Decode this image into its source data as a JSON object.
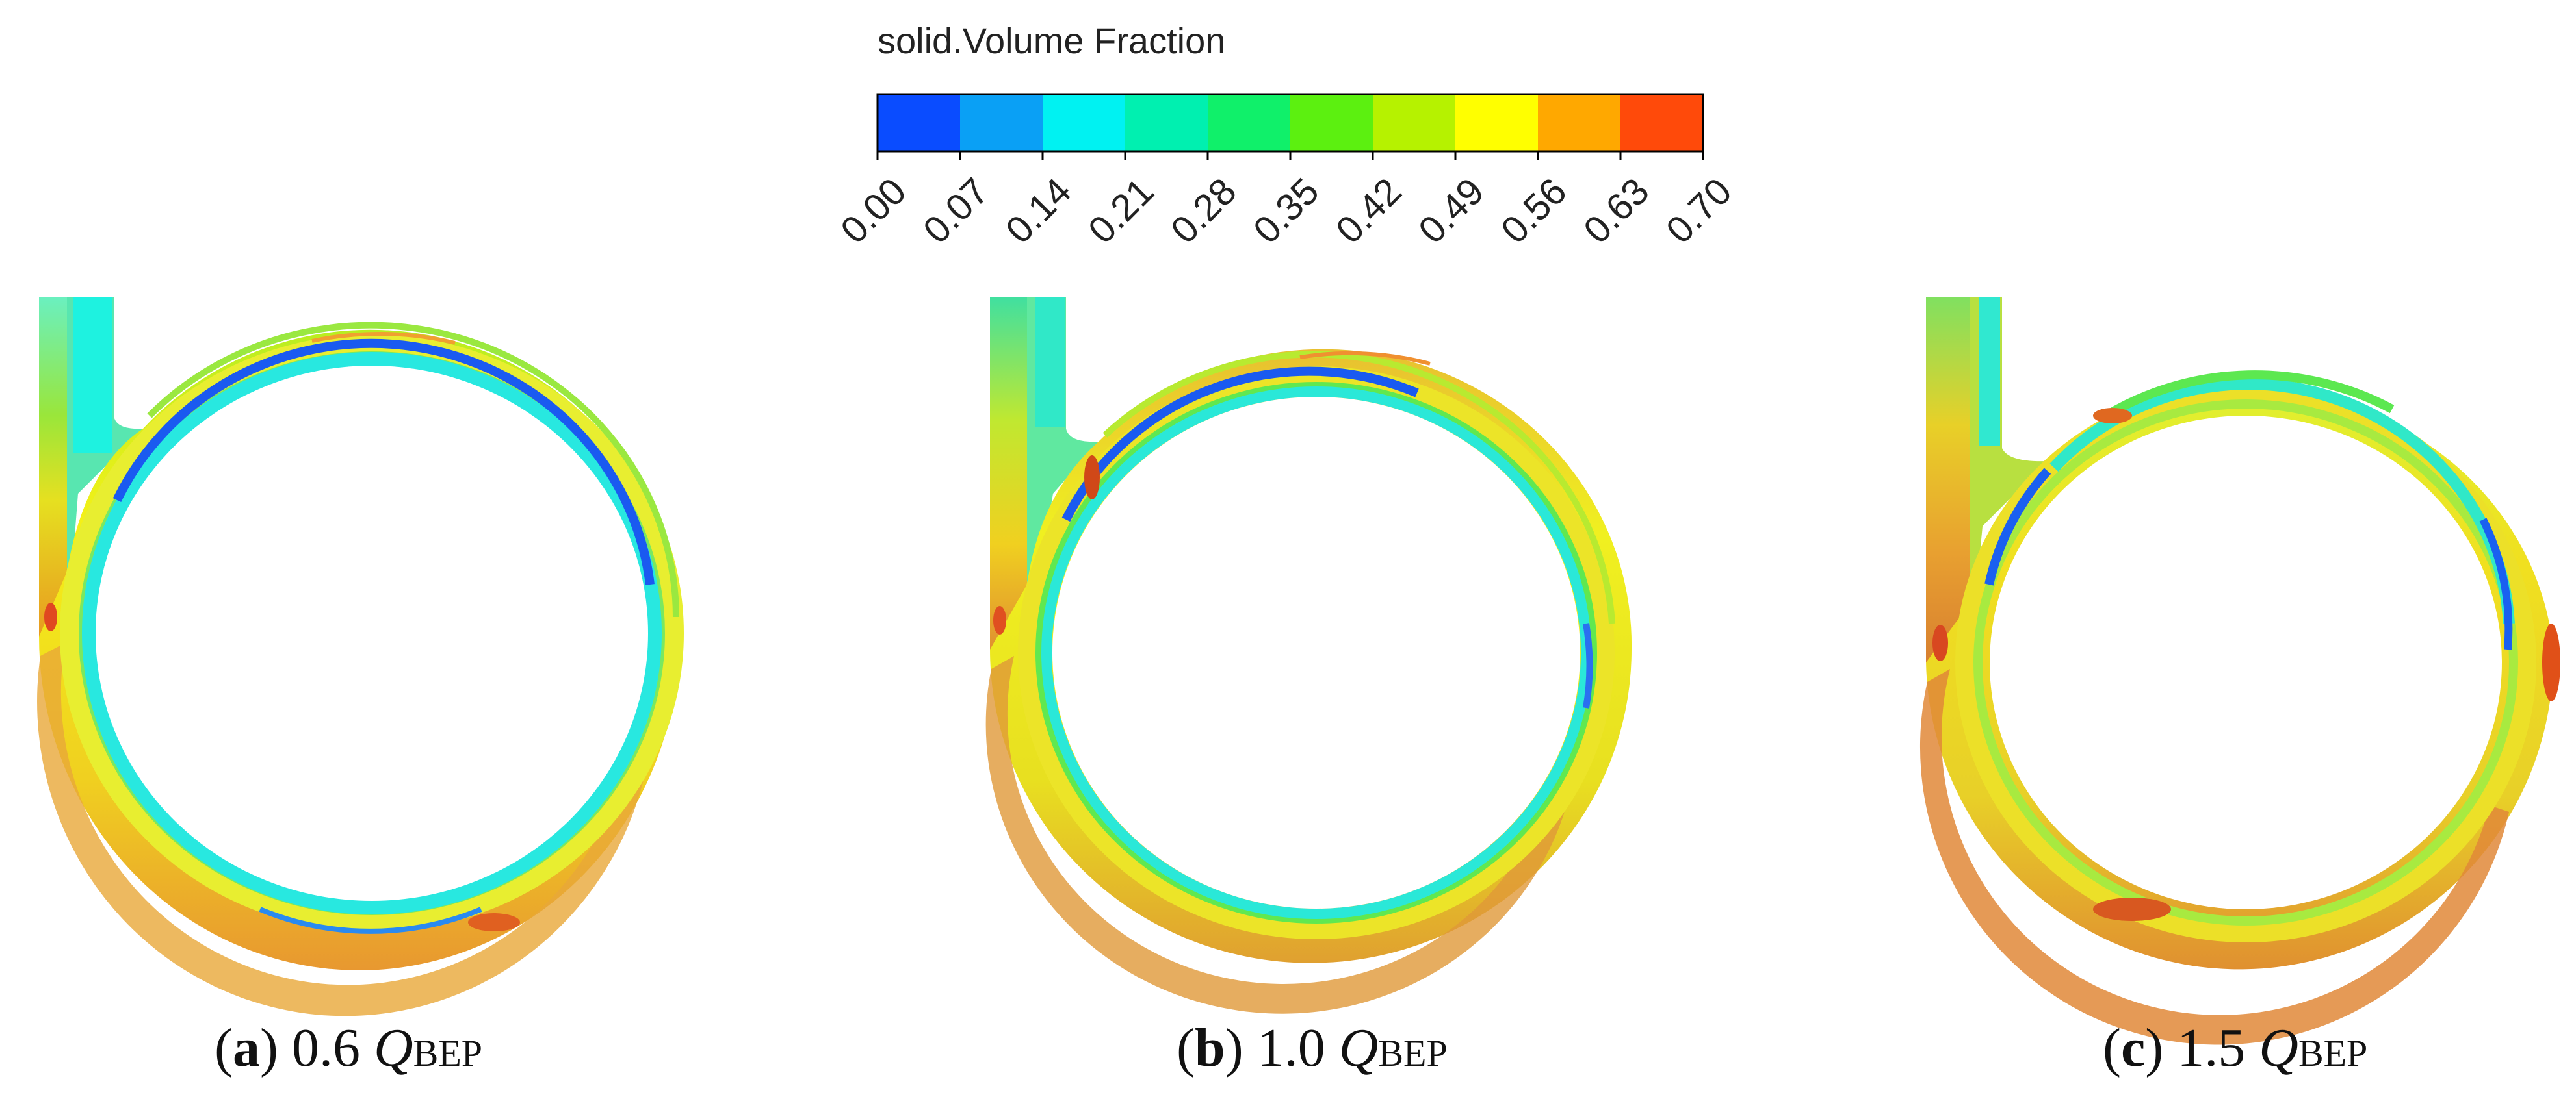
{
  "colorbar": {
    "title": "solid.Volume Fraction",
    "ticks": [
      "0.00",
      "0.07",
      "0.14",
      "0.21",
      "0.28",
      "0.35",
      "0.42",
      "0.49",
      "0.56",
      "0.63",
      "0.70"
    ],
    "colors": [
      "#0a4cff",
      "#0aa0f5",
      "#00f2f2",
      "#00f0b0",
      "#10f06a",
      "#5cf010",
      "#b6f200",
      "#ffff00",
      "#ffa800",
      "#ff4a0a"
    ]
  },
  "panels": [
    {
      "letter": "a",
      "value": "0.6",
      "symbol": "Q",
      "subscript": "BEP"
    },
    {
      "letter": "b",
      "value": "1.0",
      "symbol": "Q",
      "subscript": "BEP"
    },
    {
      "letter": "c",
      "value": "1.5",
      "symbol": "Q",
      "subscript": "BEP"
    }
  ]
}
